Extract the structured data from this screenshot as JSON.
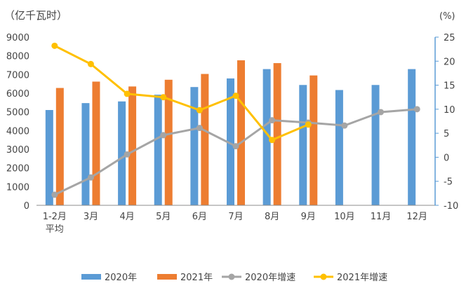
{
  "chart_data": {
    "type": "bar",
    "left_unit": "（亿千瓦时）",
    "right_unit": "(%)",
    "categories": [
      "1-2月平均",
      "3月",
      "4月",
      "5月",
      "6月",
      "7月",
      "8月",
      "9月",
      "10月",
      "11月",
      "12月"
    ],
    "category_lines": [
      [
        "1-2月",
        "平均"
      ],
      [
        "3月"
      ],
      [
        "4月"
      ],
      [
        "5月"
      ],
      [
        "6月"
      ],
      [
        "7月"
      ],
      [
        "8月"
      ],
      [
        "9月"
      ],
      [
        "10月"
      ],
      [
        "11月"
      ],
      [
        "12月"
      ]
    ],
    "left_axis": {
      "min": 0,
      "max": 9000,
      "step": 1000,
      "ticks": [
        "0",
        "1000",
        "2000",
        "3000",
        "4000",
        "5000",
        "6000",
        "7000",
        "8000",
        "9000"
      ]
    },
    "right_axis": {
      "min": -10,
      "max": 25,
      "step": 5,
      "ticks": [
        "-10",
        "-5",
        "0",
        "5",
        "10",
        "15",
        "20",
        "25"
      ]
    },
    "series": [
      {
        "name": "2020年",
        "kind": "bar",
        "axis": "left",
        "color": "#5B9BD5",
        "values": [
          5100,
          5470,
          5560,
          5920,
          6330,
          6790,
          7290,
          6440,
          6170,
          6440,
          7290
        ]
      },
      {
        "name": "2021年",
        "kind": "bar",
        "axis": "left",
        "color": "#ED7D31",
        "values": [
          6280,
          6620,
          6360,
          6720,
          7030,
          7760,
          7610,
          6950,
          null,
          null,
          null
        ]
      },
      {
        "name": "2020年增速",
        "kind": "line",
        "axis": "right",
        "color": "#A5A5A5",
        "values": [
          -7.8,
          -4.2,
          0.6,
          4.6,
          6.1,
          2.3,
          7.7,
          7.2,
          6.6,
          9.4,
          10.0
        ]
      },
      {
        "name": "2021年增速",
        "kind": "line",
        "axis": "right",
        "color": "#FFC000",
        "values": [
          23.2,
          19.4,
          13.2,
          12.5,
          9.8,
          12.8,
          3.6,
          6.8,
          null,
          null,
          null
        ]
      }
    ],
    "legend_position": "bottom",
    "grid": false
  }
}
